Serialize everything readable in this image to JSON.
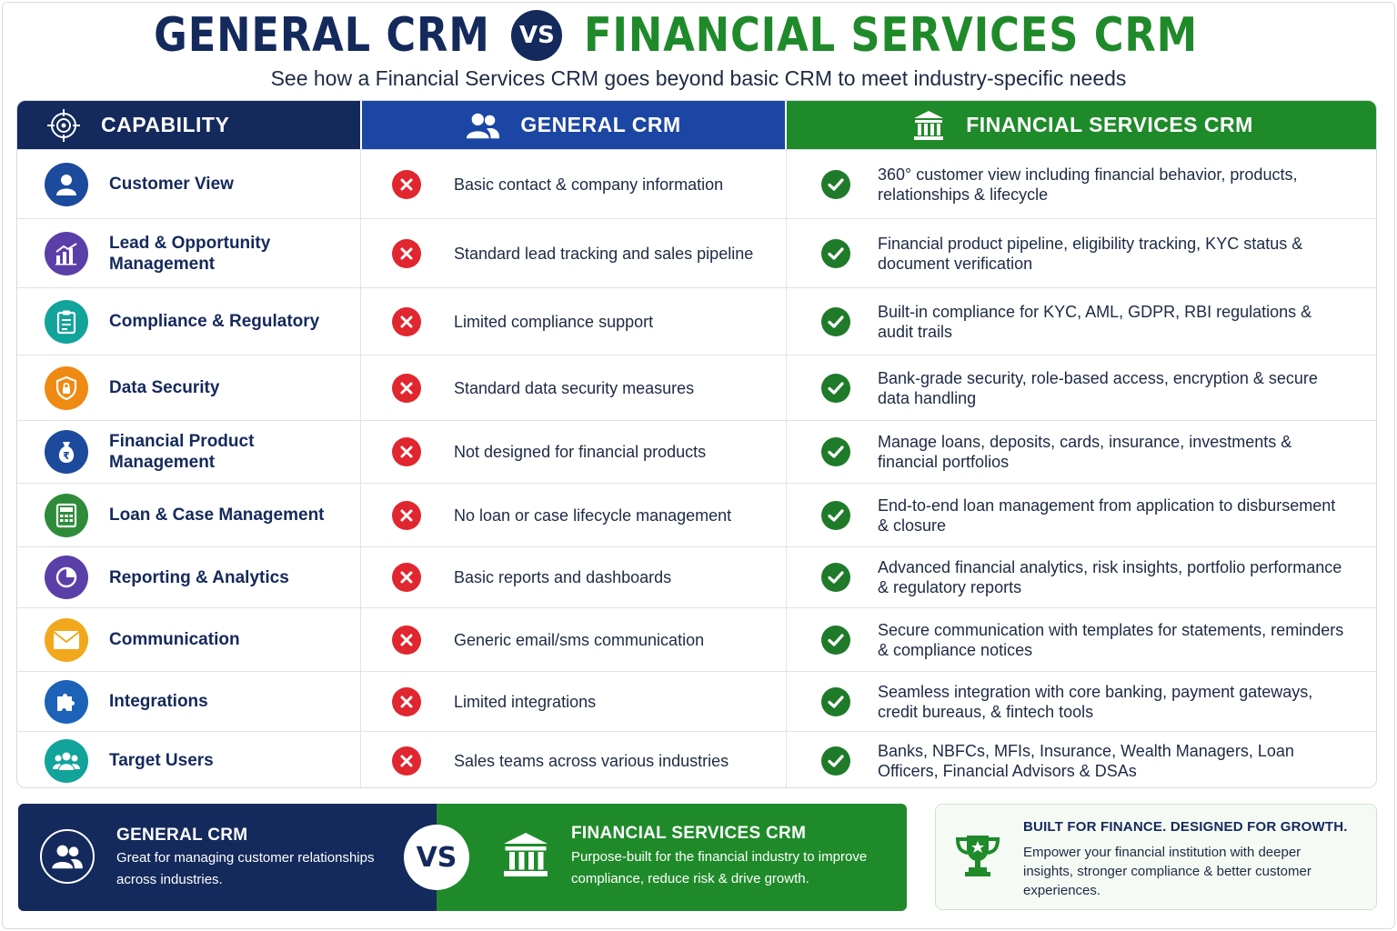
{
  "header": {
    "title_left": "GENERAL CRM",
    "vs": "VS",
    "title_right": "FINANCIAL SERVICES CRM",
    "subtitle": "See how a Financial Services CRM goes beyond basic CRM to meet industry-specific needs"
  },
  "table": {
    "columns": [
      {
        "label": "CAPABILITY",
        "icon": "target-icon"
      },
      {
        "label": "GENERAL CRM",
        "icon": "users-icon"
      },
      {
        "label": "FINANCIAL SERVICES CRM",
        "icon": "bank-icon"
      }
    ],
    "rows": [
      {
        "capability": "Customer View",
        "icon": "user-icon",
        "color": "#1c4a9c",
        "general": "Basic contact & company information",
        "financial": "360° customer view including financial behavior, products, relationships & lifecycle"
      },
      {
        "capability": "Lead & Opportunity Management",
        "icon": "bar-chart-icon",
        "color": "#5b3fa8",
        "general": "Standard lead tracking and sales pipeline",
        "financial": "Financial product pipeline, eligibility tracking, KYC status & document verification"
      },
      {
        "capability": "Compliance & Regulatory",
        "icon": "clipboard-icon",
        "color": "#12a39a",
        "general": "Limited compliance support",
        "financial": "Built-in compliance for KYC, AML, GDPR, RBI regulations & audit trails"
      },
      {
        "capability": "Data Security",
        "icon": "shield-lock-icon",
        "color": "#ef8a12",
        "general": "Standard data security measures",
        "financial": "Bank-grade security, role-based access, encryption & secure data handling"
      },
      {
        "capability": "Financial Product Management",
        "icon": "money-bag-icon",
        "color": "#1c4a9c",
        "general": "Not designed for financial products",
        "financial": "Manage loans, deposits, cards, insurance, investments & financial portfolios"
      },
      {
        "capability": "Loan & Case Management",
        "icon": "calculator-icon",
        "color": "#2e8b3a",
        "general": "No loan or case lifecycle management",
        "financial": "End-to-end loan management from application to disbursement & closure"
      },
      {
        "capability": "Reporting & Analytics",
        "icon": "pie-chart-icon",
        "color": "#5b3fa8",
        "general": "Basic reports and dashboards",
        "financial": "Advanced financial analytics, risk insights, portfolio performance & regulatory reports"
      },
      {
        "capability": "Communication",
        "icon": "envelope-icon",
        "color": "#f2a81c",
        "general": "Generic email/sms communication",
        "financial": "Secure communication with templates for statements, reminders & compliance notices"
      },
      {
        "capability": "Integrations",
        "icon": "puzzle-icon",
        "color": "#1c62b8",
        "general": "Limited integrations",
        "financial": "Seamless integration with core banking, payment gateways, credit bureaus, & fintech tools"
      },
      {
        "capability": "Target Users",
        "icon": "group-icon",
        "color": "#12a39a",
        "general": "Sales teams across various industries",
        "financial": "Banks, NBFCs, MFIs, Insurance, Wealth Managers, Loan Officers, Financial Advisors & DSAs"
      }
    ]
  },
  "banner": {
    "left_title": "GENERAL CRM",
    "left_text": "Great for managing customer relationships across industries.",
    "vs": "VS",
    "right_title": "FINANCIAL SERVICES CRM",
    "right_text": "Purpose-built for the financial industry to improve compliance, reduce risk & drive growth."
  },
  "promo": {
    "title": "BUILT FOR FINANCE. DESIGNED FOR GROWTH.",
    "text": "Empower your financial institution with deeper insights, stronger compliance & better customer experiences.",
    "icon": "trophy-icon"
  },
  "colors": {
    "navy": "#14295c",
    "blue": "#1c46a3",
    "green": "#1f8a2a",
    "red": "#e0262f"
  }
}
